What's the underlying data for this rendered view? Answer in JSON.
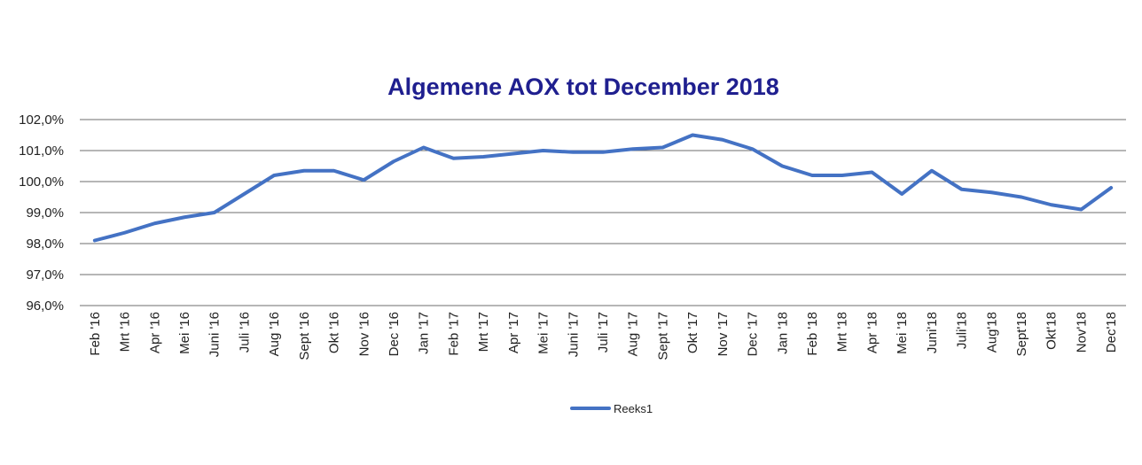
{
  "chart_data": {
    "type": "line",
    "title": "Algemene AOX tot December 2018",
    "xlabel": "",
    "ylabel": "",
    "ylim": [
      96.0,
      102.0
    ],
    "yticks": [
      96.0,
      97.0,
      98.0,
      99.0,
      100.0,
      101.0,
      102.0
    ],
    "ytick_labels": [
      "96,0%",
      "97,0%",
      "98,0%",
      "99,0%",
      "100,0%",
      "101,0%",
      "102,0%"
    ],
    "grid": true,
    "legend": "bottom",
    "categories": [
      "Feb '16",
      "Mrt '16",
      "Apr '16",
      "Mei '16",
      "Juni '16",
      "Juli '16",
      "Aug '16",
      "Sept '16",
      "Okt '16",
      "Nov '16",
      "Dec '16",
      "Jan '17",
      "Feb '17",
      "Mrt '17",
      "Apr '17",
      "Mei '17",
      "Juni '17",
      "Juli '17",
      "Aug '17",
      "Sept '17",
      "Okt '17",
      "Nov '17",
      "Dec '17",
      "Jan '18",
      "Feb '18",
      "Mrt '18",
      "Apr '18",
      "Mei '18",
      "Juni'18",
      "Juli'18",
      "Aug'18",
      "Sept'18",
      "Okt'18",
      "Nov'18",
      "Dec'18"
    ],
    "series": [
      {
        "name": "Reeks1",
        "color": "#4472c4",
        "values": [
          98.1,
          98.35,
          98.65,
          98.85,
          99.0,
          99.6,
          100.2,
          100.35,
          100.35,
          100.05,
          100.65,
          101.1,
          100.75,
          100.8,
          100.9,
          101.0,
          100.95,
          100.95,
          101.05,
          101.1,
          101.5,
          101.35,
          101.05,
          100.5,
          100.2,
          100.2,
          100.3,
          99.6,
          100.35,
          99.75,
          99.65,
          99.5,
          99.25,
          99.1,
          99.8
        ]
      }
    ]
  }
}
